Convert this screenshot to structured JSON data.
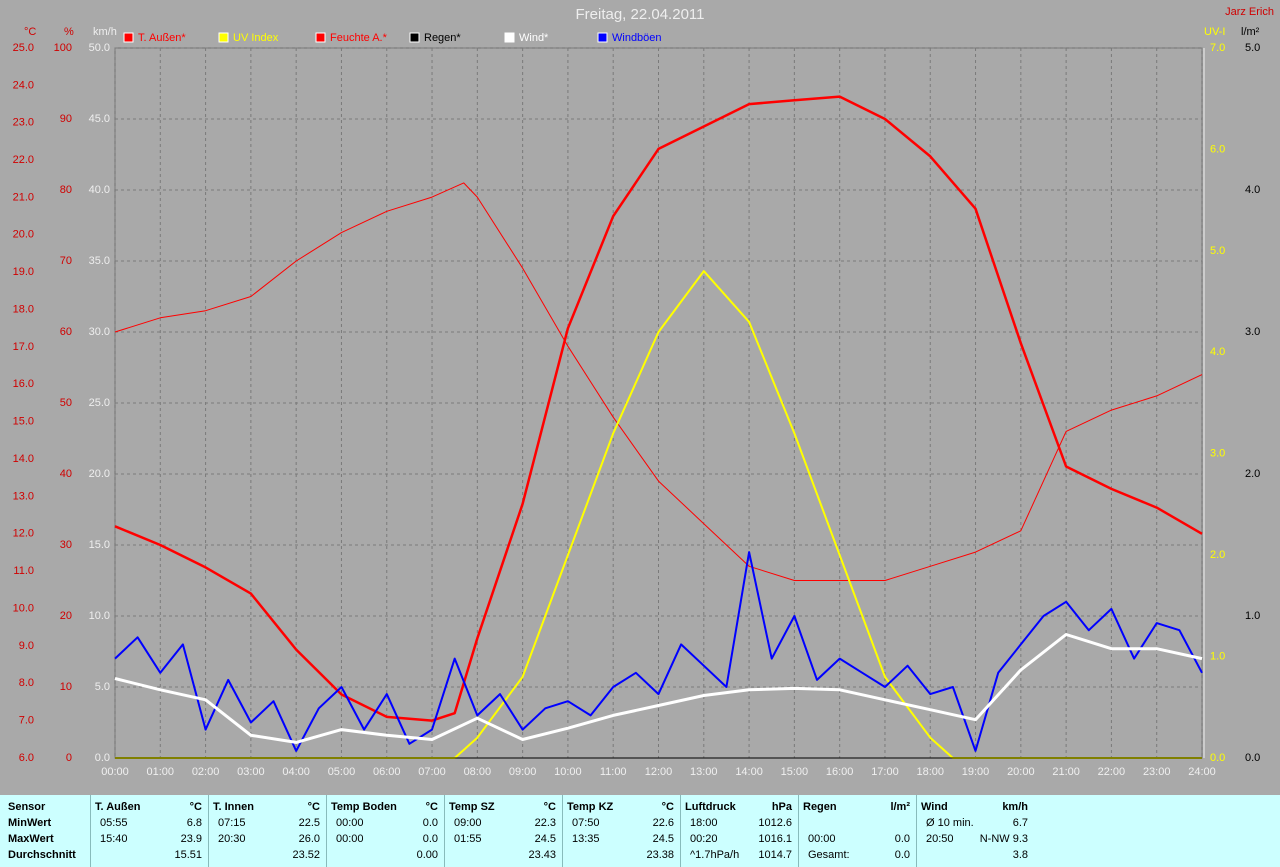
{
  "chart_data": {
    "type": "line",
    "title": "Freitag, 22.04.2011",
    "author": "Jarz Erich",
    "grid": true,
    "xlim": [
      0,
      24
    ],
    "xticks": [
      {
        "value": 0,
        "label": "00:00"
      },
      {
        "value": 1,
        "label": "01:00"
      },
      {
        "value": 2,
        "label": "02:00"
      },
      {
        "value": 3,
        "label": "03:00"
      },
      {
        "value": 4,
        "label": "04:00"
      },
      {
        "value": 5,
        "label": "05:00"
      },
      {
        "value": 6,
        "label": "06:00"
      },
      {
        "value": 7,
        "label": "07:00"
      },
      {
        "value": 8,
        "label": "08:00"
      },
      {
        "value": 9,
        "label": "09:00"
      },
      {
        "value": 10,
        "label": "10:00"
      },
      {
        "value": 11,
        "label": "11:00"
      },
      {
        "value": 12,
        "label": "12:00"
      },
      {
        "value": 13,
        "label": "13:00"
      },
      {
        "value": 14,
        "label": "14:00"
      },
      {
        "value": 15,
        "label": "15:00"
      },
      {
        "value": 16,
        "label": "16:00"
      },
      {
        "value": 17,
        "label": "17:00"
      },
      {
        "value": 18,
        "label": "18:00"
      },
      {
        "value": 19,
        "label": "19:00"
      },
      {
        "value": 20,
        "label": "20:00"
      },
      {
        "value": 21,
        "label": "21:00"
      },
      {
        "value": 22,
        "label": "22:00"
      },
      {
        "value": 23,
        "label": "23:00"
      },
      {
        "value": 24,
        "label": "24:00"
      }
    ],
    "axes": [
      {
        "unit": "°C",
        "color": "#d00000",
        "lim": [
          6,
          25
        ],
        "ticks": [
          {
            "value": 6,
            "label": "6.0"
          },
          {
            "value": 7,
            "label": "7.0"
          },
          {
            "value": 8,
            "label": "8.0"
          },
          {
            "value": 9,
            "label": "9.0"
          },
          {
            "value": 10,
            "label": "10.0"
          },
          {
            "value": 11,
            "label": "11.0"
          },
          {
            "value": 12,
            "label": "12.0"
          },
          {
            "value": 13,
            "label": "13.0"
          },
          {
            "value": 14,
            "label": "14.0"
          },
          {
            "value": 15,
            "label": "15.0"
          },
          {
            "value": 16,
            "label": "16.0"
          },
          {
            "value": 17,
            "label": "17.0"
          },
          {
            "value": 18,
            "label": "18.0"
          },
          {
            "value": 19,
            "label": "19.0"
          },
          {
            "value": 20,
            "label": "20.0"
          },
          {
            "value": 21,
            "label": "21.0"
          },
          {
            "value": 22,
            "label": "22.0"
          },
          {
            "value": 23,
            "label": "23.0"
          },
          {
            "value": 24,
            "label": "24.0"
          },
          {
            "value": 25,
            "label": "25.0"
          }
        ]
      },
      {
        "unit": "%",
        "color": "#d00000",
        "lim": [
          0,
          100
        ],
        "ticks": [
          0,
          10,
          20,
          30,
          40,
          50,
          60,
          70,
          80,
          90,
          100
        ]
      },
      {
        "unit": "km/h",
        "color": "#eeeeee",
        "lim": [
          0,
          50
        ],
        "ticks": [
          {
            "value": 0,
            "label": "0.0"
          },
          {
            "value": 5,
            "label": "5.0"
          },
          {
            "value": 10,
            "label": "10.0"
          },
          {
            "value": 15,
            "label": "15.0"
          },
          {
            "value": 20,
            "label": "20.0"
          },
          {
            "value": 25,
            "label": "25.0"
          },
          {
            "value": 30,
            "label": "30.0"
          },
          {
            "value": 35,
            "label": "35.0"
          },
          {
            "value": 40,
            "label": "40.0"
          },
          {
            "value": 45,
            "label": "45.0"
          },
          {
            "value": 50,
            "label": "50.0"
          }
        ]
      },
      {
        "unit": "UV-I",
        "color": "#ffff00",
        "lim": [
          0,
          7
        ],
        "ticks": [
          {
            "value": 0,
            "label": "0.0"
          },
          {
            "value": 1,
            "label": "1.0"
          },
          {
            "value": 2,
            "label": "2.0"
          },
          {
            "value": 3,
            "label": "3.0"
          },
          {
            "value": 4,
            "label": "4.0"
          },
          {
            "value": 5,
            "label": "5.0"
          },
          {
            "value": 6,
            "label": "6.0"
          },
          {
            "value": 7,
            "label": "7.0"
          }
        ]
      },
      {
        "unit": "l/m²",
        "color": "#000000",
        "lim": [
          0,
          5
        ],
        "ticks": [
          {
            "value": 0,
            "label": "0.0"
          },
          {
            "value": 1,
            "label": "1.0"
          },
          {
            "value": 2,
            "label": "2.0"
          },
          {
            "value": 3,
            "label": "3.0"
          },
          {
            "value": 4,
            "label": "4.0"
          },
          {
            "value": 5,
            "label": "5.0"
          }
        ]
      }
    ],
    "series": [
      {
        "name": "T. Außen*",
        "color": "#ff0000",
        "axis": 0,
        "x": [
          0,
          1,
          2,
          3,
          4,
          5,
          6,
          7,
          7.5,
          8,
          9,
          10,
          11,
          12,
          13,
          14,
          15,
          16,
          17,
          18,
          19,
          20,
          21,
          22,
          23,
          24
        ],
        "values": [
          12.2,
          11.7,
          11.1,
          10.4,
          8.9,
          7.7,
          7.1,
          7.0,
          7.2,
          9.2,
          12.8,
          17.5,
          20.5,
          22.3,
          22.9,
          23.5,
          23.6,
          23.7,
          23.1,
          22.1,
          20.7,
          17.1,
          13.8,
          13.2,
          12.7,
          12.0
        ]
      },
      {
        "name": "UV Index",
        "color": "#ffff00",
        "axis": 3,
        "x": [
          0,
          7.5,
          8,
          9,
          10,
          11,
          12,
          13,
          14,
          15,
          16,
          17,
          18,
          18.5,
          24
        ],
        "values": [
          0,
          0,
          0.2,
          0.8,
          2.0,
          3.2,
          4.2,
          4.8,
          4.3,
          3.2,
          2.0,
          0.8,
          0.2,
          0,
          0
        ]
      },
      {
        "name": "Feuchte A.*",
        "color": "#ff0000",
        "axis": 1,
        "x": [
          0,
          1,
          2,
          3,
          4,
          5,
          6,
          7,
          7.7,
          8,
          9,
          10,
          11,
          12,
          13,
          14,
          15,
          16,
          17,
          18,
          19,
          20,
          21,
          22,
          23,
          24
        ],
        "values": [
          60,
          62,
          63,
          65,
          70,
          74,
          77,
          79,
          81,
          79,
          69,
          58,
          48,
          39,
          33,
          27,
          25,
          25,
          25,
          27,
          29,
          32,
          46,
          49,
          51,
          54
        ]
      },
      {
        "name": "Regen*",
        "color": "#000000",
        "axis": 4,
        "x": [
          0,
          24
        ],
        "values": [
          0,
          0
        ]
      },
      {
        "name": "Wind*",
        "color": "#ffffff",
        "axis": 2,
        "x": [
          0,
          1,
          2,
          3,
          4,
          5,
          6,
          7,
          8,
          9,
          10,
          11,
          12,
          13,
          14,
          15,
          16,
          17,
          18,
          19,
          20,
          21,
          22,
          23,
          24
        ],
        "values": [
          5.6,
          4.8,
          4.1,
          1.6,
          1.1,
          2.0,
          1.6,
          1.3,
          2.8,
          1.3,
          2.1,
          3.0,
          3.7,
          4.4,
          4.8,
          4.9,
          4.8,
          4.1,
          3.4,
          2.7,
          6.2,
          8.7,
          7.7,
          7.7,
          7.0
        ]
      },
      {
        "name": "Windböen",
        "color": "#0000ff",
        "axis": 2,
        "x": [
          0,
          0.5,
          1,
          1.5,
          2,
          2.5,
          3,
          3.5,
          4,
          4.5,
          5,
          5.5,
          6,
          6.5,
          7,
          7.5,
          8,
          8.5,
          9,
          9.5,
          10,
          10.5,
          11,
          11.5,
          12,
          12.5,
          13,
          13.5,
          14,
          14.5,
          15,
          15.5,
          16,
          16.5,
          17,
          17.5,
          18,
          18.5,
          19,
          19.5,
          20,
          20.5,
          21,
          21.5,
          22,
          22.5,
          23,
          23.5,
          24
        ],
        "values": [
          7.0,
          8.5,
          6.0,
          8.0,
          2.0,
          5.5,
          2.5,
          4.0,
          0.5,
          3.5,
          5.0,
          2.0,
          4.5,
          1.0,
          2.0,
          7.0,
          3.0,
          4.5,
          2.0,
          3.5,
          4.0,
          3.0,
          5.0,
          6.0,
          4.5,
          8.0,
          6.5,
          5.0,
          14.5,
          7.0,
          10.0,
          5.5,
          7.0,
          6.0,
          5.0,
          6.5,
          4.5,
          5.0,
          0.5,
          6.0,
          8.0,
          10.0,
          11.0,
          9.0,
          10.5,
          7.0,
          9.5,
          9.0,
          6.0
        ]
      }
    ]
  },
  "table": {
    "label_header": "Sensor",
    "columns": [
      {
        "name": "T. Außen",
        "unit": "°C"
      },
      {
        "name": "T. Innen",
        "unit": "°C"
      },
      {
        "name": "Temp Boden",
        "unit": "°C"
      },
      {
        "name": "Temp SZ",
        "unit": "°C"
      },
      {
        "name": "Temp KZ",
        "unit": "°C"
      },
      {
        "name": "Luftdruck",
        "unit": "hPa"
      },
      {
        "name": "Regen",
        "unit": "l/m²"
      },
      {
        "name": "Wind",
        "unit": "km/h"
      }
    ],
    "rows": [
      {
        "label": "MinWert",
        "cells": [
          [
            "05:55",
            "6.8"
          ],
          [
            "07:15",
            "22.5"
          ],
          [
            "00:00",
            "0.0"
          ],
          [
            "09:00",
            "22.3"
          ],
          [
            "07:50",
            "22.6"
          ],
          [
            "18:00",
            "1012.6"
          ],
          [
            null,
            null
          ],
          [
            "Ø 10 min.",
            "6.7"
          ]
        ]
      },
      {
        "label": "MaxWert",
        "cells": [
          [
            "15:40",
            "23.9"
          ],
          [
            "20:30",
            "26.0"
          ],
          [
            "00:00",
            "0.0"
          ],
          [
            "01:55",
            "24.5"
          ],
          [
            "13:35",
            "24.5"
          ],
          [
            "00:20",
            "1016.1"
          ],
          [
            "00:00",
            "0.0"
          ],
          [
            "20:50",
            "N-NW 9.3"
          ]
        ]
      },
      {
        "label": "Durchschnitt",
        "cells": [
          [
            null,
            "15.51"
          ],
          [
            null,
            "23.52"
          ],
          [
            null,
            "0.00"
          ],
          [
            null,
            "23.43"
          ],
          [
            null,
            "23.38"
          ],
          [
            "^1.7hPa/h",
            "1014.7"
          ],
          [
            "Gesamt:",
            "0.0"
          ],
          [
            null,
            "3.8"
          ]
        ]
      }
    ]
  }
}
